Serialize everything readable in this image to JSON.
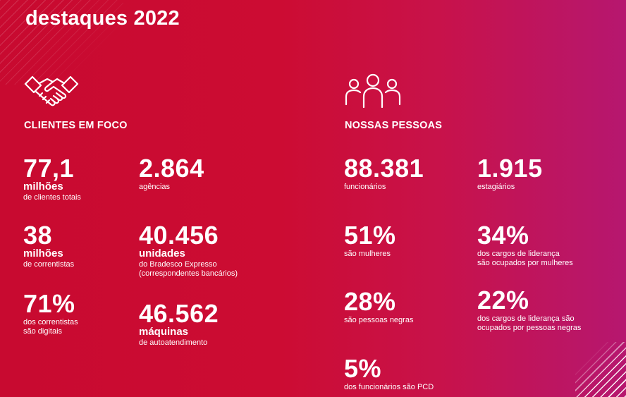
{
  "title": "destaques 2022",
  "icons": {
    "clientes": "handshake-icon",
    "pessoas": "people-group-icon"
  },
  "colors": {
    "background_left": "#c80a30",
    "background_right": "#b6176f",
    "text": "#ffffff"
  },
  "clientes": {
    "heading": "CLIENTES EM FOCO",
    "stats": [
      {
        "value": "77,1",
        "unit": "milhões",
        "desc": [
          "de clientes totais"
        ]
      },
      {
        "value": "2.864",
        "unit": "",
        "desc": [
          "agências"
        ]
      },
      {
        "value": "38",
        "unit": "milhões",
        "desc": [
          "de correntistas"
        ]
      },
      {
        "value": "40.456",
        "unit": "unidades",
        "desc": [
          "do Bradesco Expresso",
          "(correspondentes bancários)"
        ]
      },
      {
        "value": "71%",
        "unit": "",
        "desc": [
          "dos correntistas",
          "são digitais"
        ]
      },
      {
        "value": "46.562",
        "unit": "máquinas",
        "desc": [
          "de autoatendimento"
        ]
      }
    ]
  },
  "pessoas": {
    "heading": "NOSSAS PESSOAS",
    "stats": [
      {
        "value": "88.381",
        "unit": "",
        "desc": [
          "funcionários"
        ]
      },
      {
        "value": "1.915",
        "unit": "",
        "desc": [
          "estagiários"
        ]
      },
      {
        "value": "51%",
        "unit": "",
        "desc": [
          "são mulheres"
        ]
      },
      {
        "value": "34%",
        "unit": "",
        "desc": [
          "dos cargos de liderança",
          "são ocupados por mulheres"
        ]
      },
      {
        "value": "28%",
        "unit": "",
        "desc": [
          "são pessoas negras"
        ]
      },
      {
        "value": "22%",
        "unit": "",
        "desc": [
          "dos cargos de liderança são",
          "ocupados por pessoas negras"
        ]
      },
      {
        "value": "5%",
        "unit": "",
        "desc": [
          "dos funcionários são PCD"
        ]
      }
    ]
  }
}
